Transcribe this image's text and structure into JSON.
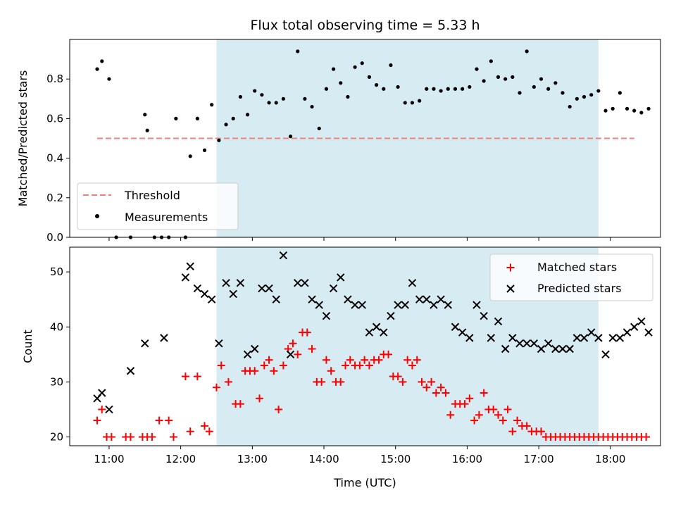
{
  "chart_data": [
    {
      "type": "scatter",
      "title": "Flux total observing time = 5.33 h",
      "ylabel": "Matched/Predicted stars",
      "ylim": [
        0,
        1.0
      ],
      "yticks": [
        "0.0",
        "0.2",
        "0.4",
        "0.6",
        "0.8"
      ],
      "xlim": [
        "10:27",
        "18:42"
      ],
      "shaded_region": [
        "12:30",
        "17:50"
      ],
      "threshold": {
        "name": "Threshold",
        "value": 0.5,
        "x_range": [
          "10:50",
          "18:20"
        ],
        "color": "#f08080"
      },
      "legend_position": "lower-left",
      "series": [
        {
          "name": "Measurements",
          "color": "#000000",
          "x": [
            "10:50",
            "10:54",
            "11:00",
            "11:06",
            "11:18",
            "11:30",
            "11:32",
            "11:38",
            "11:44",
            "11:50",
            "11:56",
            "12:04",
            "12:08",
            "12:14",
            "12:20",
            "12:26",
            "12:32",
            "12:38",
            "12:44",
            "12:50",
            "12:56",
            "13:02",
            "13:08",
            "13:14",
            "13:20",
            "13:26",
            "13:32",
            "13:38",
            "13:44",
            "13:50",
            "13:56",
            "14:02",
            "14:08",
            "14:14",
            "14:20",
            "14:26",
            "14:32",
            "14:38",
            "14:44",
            "14:50",
            "14:56",
            "15:02",
            "15:08",
            "15:14",
            "15:20",
            "15:26",
            "15:32",
            "15:38",
            "15:44",
            "15:50",
            "15:56",
            "16:02",
            "16:08",
            "16:14",
            "16:20",
            "16:26",
            "16:32",
            "16:38",
            "16:44",
            "16:50",
            "16:56",
            "17:02",
            "17:08",
            "17:14",
            "17:20",
            "17:26",
            "17:32",
            "17:38",
            "17:44",
            "17:50",
            "17:56",
            "18:02",
            "18:08",
            "18:14",
            "18:20",
            "18:26",
            "18:32"
          ],
          "y": [
            0.85,
            0.89,
            0.8,
            0.0,
            0.0,
            0.62,
            0.54,
            0.0,
            0.0,
            0.0,
            0.6,
            0.0,
            0.41,
            0.6,
            0.44,
            0.67,
            0.49,
            0.57,
            0.6,
            0.71,
            0.62,
            0.74,
            0.72,
            0.68,
            0.68,
            0.7,
            0.51,
            0.94,
            0.7,
            0.66,
            0.55,
            0.75,
            0.85,
            0.78,
            0.71,
            0.86,
            0.88,
            0.81,
            0.77,
            0.75,
            0.87,
            0.76,
            0.68,
            0.68,
            0.69,
            0.75,
            0.75,
            0.74,
            0.75,
            0.75,
            0.75,
            0.76,
            0.85,
            0.79,
            0.89,
            0.81,
            0.8,
            0.81,
            0.73,
            0.94,
            0.76,
            0.8,
            0.75,
            0.78,
            0.73,
            0.66,
            0.7,
            0.71,
            0.72,
            0.74,
            0.64,
            0.65,
            0.73,
            0.65,
            0.64,
            0.63,
            0.65
          ]
        }
      ]
    },
    {
      "type": "scatter",
      "ylabel": "Count",
      "xlabel": "Time (UTC)",
      "ylim": [
        18.4,
        54.5
      ],
      "yticks": [
        "20",
        "30",
        "40",
        "50"
      ],
      "xticks": [
        "11:00",
        "12:00",
        "13:00",
        "14:00",
        "15:00",
        "16:00",
        "17:00",
        "18:00"
      ],
      "xlim": [
        "10:27",
        "18:42"
      ],
      "shaded_region": [
        "12:30",
        "17:50"
      ],
      "legend_position": "upper-right",
      "series": [
        {
          "name": "Matched stars",
          "marker": "plus",
          "color": "#ff0000",
          "x": [
            "10:50",
            "10:54",
            "10:58",
            "11:02",
            "11:14",
            "11:18",
            "11:28",
            "11:32",
            "11:36",
            "11:42",
            "11:50",
            "11:54",
            "12:04",
            "12:08",
            "12:14",
            "12:20",
            "12:24",
            "12:30",
            "12:34",
            "12:40",
            "12:46",
            "12:50",
            "12:54",
            "12:58",
            "13:02",
            "13:06",
            "13:10",
            "13:14",
            "13:18",
            "13:22",
            "13:26",
            "13:30",
            "13:34",
            "13:38",
            "13:42",
            "13:46",
            "13:50",
            "13:54",
            "13:58",
            "14:02",
            "14:06",
            "14:10",
            "14:14",
            "14:18",
            "14:22",
            "14:26",
            "14:30",
            "14:34",
            "14:38",
            "14:42",
            "14:46",
            "14:50",
            "14:54",
            "14:58",
            "15:02",
            "15:06",
            "15:10",
            "15:14",
            "15:18",
            "15:22",
            "15:26",
            "15:30",
            "15:34",
            "15:38",
            "15:42",
            "15:46",
            "15:50",
            "15:54",
            "15:58",
            "16:02",
            "16:06",
            "16:10",
            "16:14",
            "16:18",
            "16:22",
            "16:26",
            "16:30",
            "16:34",
            "16:38",
            "16:42",
            "16:46",
            "16:50",
            "16:54",
            "16:58",
            "17:02",
            "17:06",
            "17:10",
            "17:14",
            "17:18",
            "17:22",
            "17:26",
            "17:30",
            "17:34",
            "17:38",
            "17:42",
            "17:46",
            "17:50",
            "17:54",
            "17:58",
            "18:02",
            "18:06",
            "18:10",
            "18:14",
            "18:18",
            "18:22",
            "18:26",
            "18:30"
          ],
          "y": [
            23,
            25,
            20,
            20,
            20,
            20,
            20,
            20,
            20,
            23,
            23,
            20,
            31,
            21,
            31,
            22,
            21,
            29,
            33,
            30,
            26,
            26,
            32,
            32,
            32,
            27,
            33,
            34,
            32,
            25,
            33,
            36,
            37,
            35,
            39,
            39,
            36,
            30,
            30,
            34,
            32,
            30,
            30,
            33,
            34,
            33,
            33,
            34,
            33,
            34,
            34,
            35,
            35,
            31,
            31,
            30,
            34,
            33,
            34,
            30,
            29,
            30,
            28,
            29,
            28,
            24,
            26,
            26,
            26,
            27,
            23,
            24,
            28,
            25,
            25,
            24,
            23,
            25,
            21,
            23,
            22,
            22,
            21,
            21,
            21,
            20,
            20,
            20,
            20,
            20,
            20,
            20,
            20,
            20,
            20,
            20,
            20,
            20,
            20,
            20,
            20,
            20,
            20,
            20,
            20,
            20,
            20
          ],
          "note_count": "matched"
        },
        {
          "name": "Predicted stars",
          "marker": "x",
          "color": "#000000",
          "x": [
            "10:50",
            "10:54",
            "11:00",
            "11:18",
            "11:30",
            "11:46",
            "12:04",
            "12:08",
            "12:14",
            "12:20",
            "12:26",
            "12:32",
            "12:38",
            "12:44",
            "12:50",
            "12:56",
            "13:02",
            "13:08",
            "13:14",
            "13:20",
            "13:26",
            "13:32",
            "13:38",
            "13:44",
            "13:50",
            "13:56",
            "14:02",
            "14:08",
            "14:14",
            "14:20",
            "14:26",
            "14:32",
            "14:38",
            "14:44",
            "14:50",
            "14:56",
            "15:02",
            "15:08",
            "15:14",
            "15:20",
            "15:26",
            "15:32",
            "15:38",
            "15:44",
            "15:50",
            "15:56",
            "16:02",
            "16:08",
            "16:14",
            "16:20",
            "16:26",
            "16:32",
            "16:38",
            "16:44",
            "16:50",
            "16:56",
            "17:02",
            "17:08",
            "17:14",
            "17:20",
            "17:26",
            "17:32",
            "17:38",
            "17:44",
            "17:50",
            "17:56",
            "18:02",
            "18:08",
            "18:14",
            "18:20",
            "18:26",
            "18:32"
          ],
          "y": [
            27,
            28,
            25,
            32,
            37,
            38,
            49,
            51,
            47,
            46,
            45,
            37,
            48,
            46,
            48,
            35,
            36,
            47,
            47,
            45,
            53,
            35,
            48,
            48,
            45,
            44,
            42,
            47,
            49,
            45,
            44,
            44,
            39,
            40,
            39,
            42,
            44,
            44,
            48,
            45,
            45,
            44,
            45,
            44,
            40,
            39,
            38,
            44,
            42,
            38,
            41,
            36,
            38,
            37,
            37,
            37,
            36,
            37,
            36,
            36,
            36,
            38,
            38,
            39,
            38,
            35,
            38,
            38,
            39,
            40,
            41,
            39
          ],
          "note_count": "predicted"
        }
      ]
    }
  ]
}
